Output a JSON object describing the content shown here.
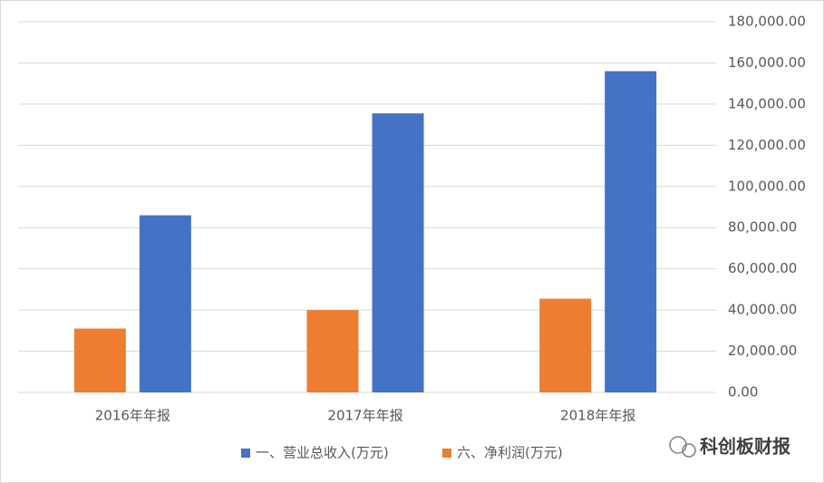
{
  "chart_data": {
    "type": "bar",
    "categories": [
      "2016年年报",
      "2017年年报",
      "2018年年报"
    ],
    "series": [
      {
        "name": "一、营业总收入(万元)",
        "color": "#4472c4",
        "values": [
          86000,
          135500,
          156000
        ]
      },
      {
        "name": "六、净利润(万元)",
        "color": "#ed7d31",
        "values": [
          31000,
          40000,
          45500
        ]
      }
    ],
    "ylim": [
      0,
      180000
    ],
    "yticks": [
      {
        "value": 0,
        "label": "0.00"
      },
      {
        "value": 20000,
        "label": "20,000.00"
      },
      {
        "value": 40000,
        "label": "40,000.00"
      },
      {
        "value": 60000,
        "label": "60,000.00"
      },
      {
        "value": 80000,
        "label": "80,000.00"
      },
      {
        "value": 100000,
        "label": "100,000.00"
      },
      {
        "value": 120000,
        "label": "120,000.00"
      },
      {
        "value": 140000,
        "label": "140,000.00"
      },
      {
        "value": 160000,
        "label": "160,000.00"
      },
      {
        "value": 180000,
        "label": "180,000.00"
      }
    ],
    "grid": true,
    "legend": "bottom",
    "watermark": "科创板财报"
  }
}
